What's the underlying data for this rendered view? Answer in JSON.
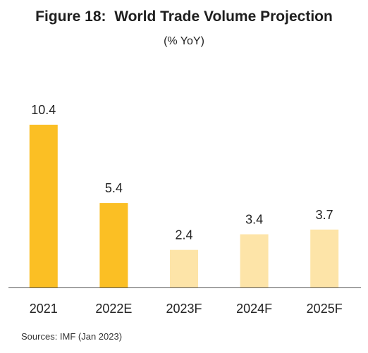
{
  "chart_data": {
    "type": "bar",
    "title": "Figure 18:  World Trade Volume Projection",
    "subtitle": "(% YoY)",
    "categories": [
      "2021",
      "2022E",
      "2023F",
      "2024F",
      "2025F"
    ],
    "values": [
      10.4,
      5.4,
      2.4,
      3.4,
      3.7
    ],
    "value_labels": [
      "10.4",
      "5.4",
      "2.4",
      "3.4",
      "3.7"
    ],
    "bar_colors": [
      "#fbbf24",
      "#fbbf24",
      "#fde4a8",
      "#fde4a8",
      "#fde4a8"
    ],
    "axis_color": "#555555",
    "grid": false,
    "legend": false,
    "ylim": [
      0,
      10.4
    ]
  },
  "source": "Sources: IMF (Jan 2023)"
}
